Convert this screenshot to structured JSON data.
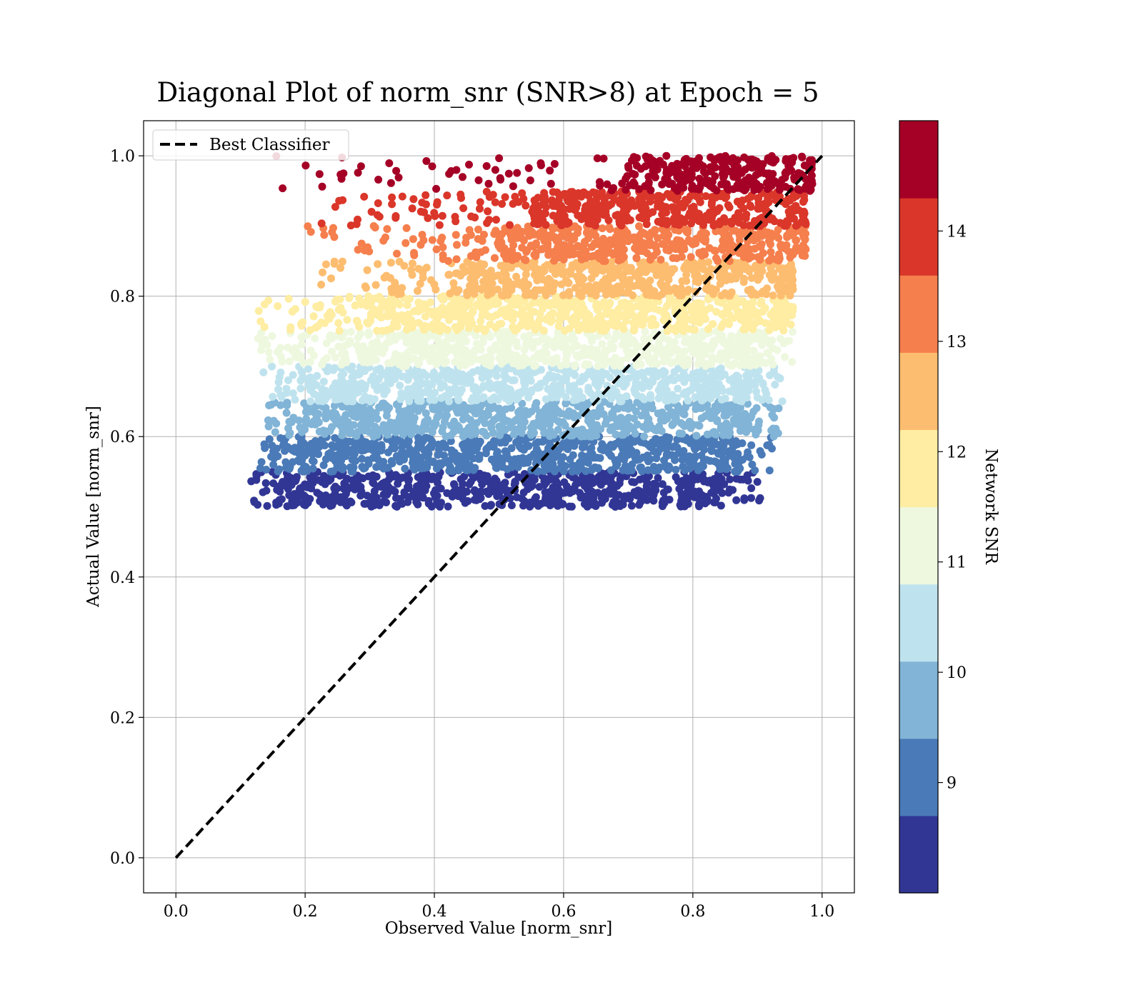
{
  "chart_data": {
    "type": "scatter",
    "title": "Diagonal Plot of norm_snr (SNR>8) at Epoch = 5",
    "xlabel": "Observed Value [norm_snr]",
    "ylabel": "Actual Value [norm_snr]",
    "xlim": [
      -0.05,
      1.05
    ],
    "ylim": [
      -0.05,
      1.05
    ],
    "xticks": [
      "0.0",
      "0.2",
      "0.4",
      "0.6",
      "0.8",
      "1.0"
    ],
    "yticks": [
      "0.0",
      "0.2",
      "0.4",
      "0.6",
      "0.8",
      "1.0"
    ],
    "grid": true,
    "legend": {
      "placement": "upper-left",
      "entries": [
        "Best Classifier"
      ]
    },
    "reference_line": {
      "name": "Best Classifier",
      "style": "dashed",
      "color": "#000000",
      "x": [
        0.0,
        1.0
      ],
      "y": [
        0.0,
        1.0
      ]
    },
    "colorbar": {
      "label": "Network SNR",
      "range": [
        8,
        15
      ],
      "ticks": [
        "9",
        "10",
        "11",
        "12",
        "13",
        "14"
      ],
      "tick_values": [
        9,
        10,
        11,
        12,
        13,
        14
      ],
      "colors": [
        "#313695",
        "#4a7ab7",
        "#81b4d6",
        "#bfe3ee",
        "#eef8df",
        "#feeda2",
        "#fdbd70",
        "#f57f4d",
        "#da362a",
        "#a50026"
      ]
    },
    "bands": [
      {
        "y_range": [
          0.5,
          0.55
        ],
        "snr": 8.35,
        "x_range": [
          0.115,
          0.905
        ],
        "dense_range": [
          0.19,
          0.86
        ]
      },
      {
        "y_range": [
          0.55,
          0.6
        ],
        "snr": 9.05,
        "x_range": [
          0.125,
          0.925
        ],
        "dense_range": [
          0.2,
          0.88
        ]
      },
      {
        "y_range": [
          0.6,
          0.65
        ],
        "snr": 9.75,
        "x_range": [
          0.13,
          0.935
        ],
        "dense_range": [
          0.24,
          0.9
        ]
      },
      {
        "y_range": [
          0.65,
          0.7
        ],
        "snr": 10.45,
        "x_range": [
          0.13,
          0.945
        ],
        "dense_range": [
          0.25,
          0.91
        ]
      },
      {
        "y_range": [
          0.7,
          0.75
        ],
        "snr": 11.15,
        "x_range": [
          0.11,
          0.955
        ],
        "dense_range": [
          0.28,
          0.93
        ]
      },
      {
        "y_range": [
          0.75,
          0.8
        ],
        "snr": 11.85,
        "x_range": [
          0.12,
          0.955
        ],
        "dense_range": [
          0.3,
          0.94
        ]
      },
      {
        "y_range": [
          0.8,
          0.85
        ],
        "snr": 12.55,
        "x_range": [
          0.2,
          0.955
        ],
        "dense_range": [
          0.45,
          0.95
        ]
      },
      {
        "y_range": [
          0.85,
          0.9
        ],
        "snr": 13.25,
        "x_range": [
          0.2,
          0.97
        ],
        "dense_range": [
          0.5,
          0.97
        ]
      },
      {
        "y_range": [
          0.9,
          0.95
        ],
        "snr": 13.95,
        "x_range": [
          0.22,
          0.97
        ],
        "dense_range": [
          0.55,
          0.97
        ]
      },
      {
        "y_range": [
          0.95,
          1.0
        ],
        "snr": 14.65,
        "x_range": [
          0.115,
          0.985
        ],
        "dense_range": [
          0.7,
          0.98
        ]
      }
    ]
  }
}
